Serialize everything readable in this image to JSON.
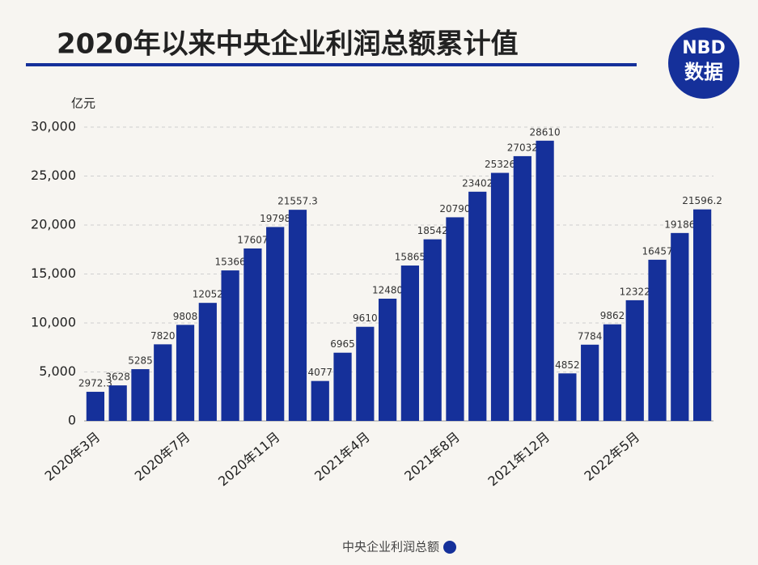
{
  "header": {
    "title": "2020年以来中央企业利润总额累计值",
    "logo_top": "NBD",
    "logo_bottom": "数据"
  },
  "chart_data": {
    "type": "bar",
    "y_axis_label": "亿元",
    "categories": [
      "2020年3月",
      null,
      null,
      null,
      "2020年7月",
      null,
      null,
      null,
      "2020年11月",
      null,
      null,
      null,
      "2021年4月",
      null,
      null,
      null,
      "2021年8月",
      null,
      null,
      null,
      "2021年12月",
      null,
      null,
      null,
      "2022年5月",
      null,
      null,
      null
    ],
    "series": [
      {
        "name": "中央企业利润总额",
        "color": "#15309a",
        "values": [
          2972.3,
          3628,
          5285,
          7820,
          9808,
          12052,
          15366,
          17607,
          19798,
          21557.3,
          4077,
          6965,
          9610,
          12480,
          15865,
          18542,
          20790,
          23402,
          25326,
          27032,
          28610,
          4852,
          7784,
          9862,
          12322,
          16457,
          19186,
          21596.2
        ]
      }
    ],
    "ylim": [
      0,
      30000
    ],
    "yticks": [
      0,
      {
        "value": 5000,
        "label": "5,000"
      },
      {
        "value": 10000,
        "label": "10,000"
      },
      {
        "value": 15000,
        "label": "15,000"
      },
      {
        "value": 20000,
        "label": "20,000"
      },
      {
        "value": 25000,
        "label": "25,000"
      },
      {
        "value": 30000,
        "label": "30,000"
      }
    ],
    "grid": true
  }
}
